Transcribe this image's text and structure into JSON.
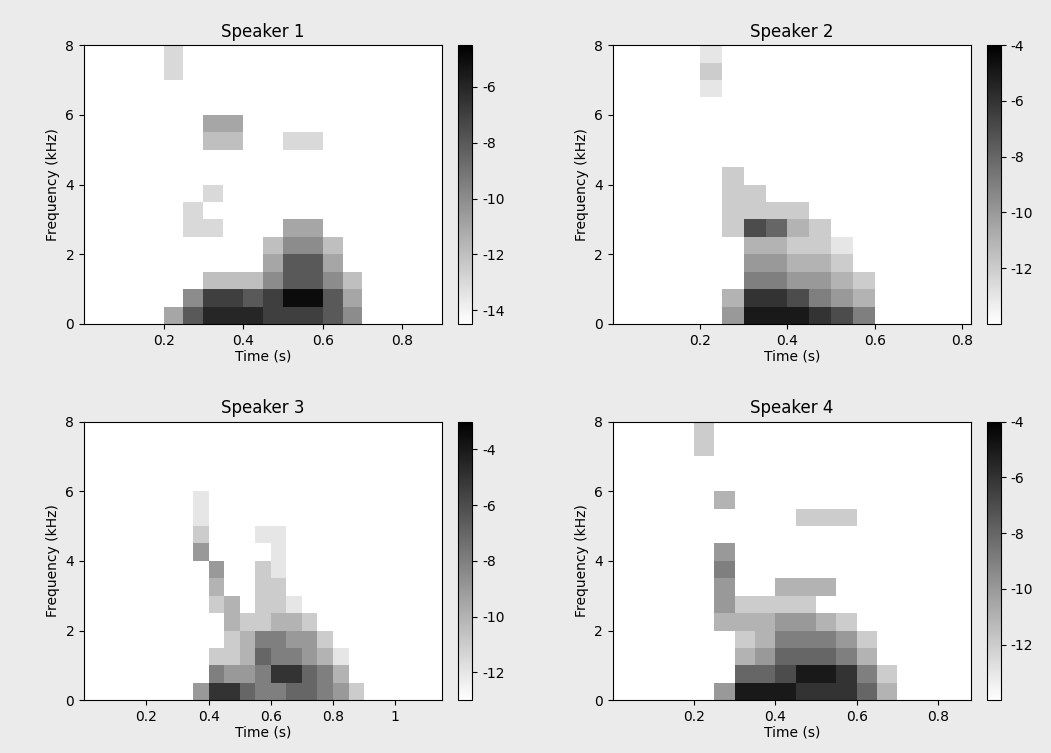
{
  "chart_data": [
    {
      "type": "heatmap",
      "title": "Speaker 1",
      "x_label": "Time (s)",
      "y_label": "Frequency (kHz)",
      "xlim": [
        0,
        0.9
      ],
      "xticks": [
        0.2,
        0.4,
        0.6,
        0.8
      ],
      "ylim": [
        0,
        8
      ],
      "yticks": [
        0,
        2,
        4,
        6,
        8
      ],
      "time_edges": [
        0.15,
        0.2,
        0.25,
        0.3,
        0.35,
        0.4,
        0.45,
        0.5,
        0.55,
        0.6,
        0.65,
        0.7,
        0.75
      ],
      "freq_edges": [
        0,
        0.5,
        1,
        1.5,
        2,
        2.5,
        3,
        3.5,
        4,
        4.5,
        5,
        5.5,
        6,
        6.5,
        7,
        7.5,
        8
      ],
      "colorbar_range": [
        -14.5,
        -4.5
      ],
      "colorbar_ticks": [
        -14,
        -12,
        -10,
        -8,
        -6
      ],
      "cells": [
        [
          null,
          -11,
          -8,
          -6,
          -6,
          -6,
          -7,
          -7,
          -7,
          -8,
          -10,
          null
        ],
        [
          null,
          null,
          -10,
          -7,
          -7,
          -8,
          -7,
          -5,
          -5,
          -8,
          -11,
          null
        ],
        [
          null,
          null,
          null,
          -12,
          -12,
          -12,
          -10,
          -8,
          -8,
          -10,
          -12,
          null
        ],
        [
          null,
          null,
          null,
          null,
          null,
          null,
          -11,
          -8,
          -8,
          -11,
          null,
          null
        ],
        [
          null,
          null,
          null,
          null,
          null,
          null,
          -12,
          -10,
          -10,
          -12,
          null,
          null
        ],
        [
          null,
          null,
          -13,
          -13,
          null,
          null,
          null,
          -11,
          -11,
          null,
          null,
          null
        ],
        [
          null,
          null,
          -13,
          null,
          null,
          null,
          null,
          null,
          null,
          null,
          null,
          null
        ],
        [
          null,
          null,
          null,
          -13,
          null,
          null,
          null,
          null,
          null,
          null,
          null,
          null
        ],
        [
          null,
          null,
          null,
          null,
          null,
          null,
          null,
          null,
          null,
          null,
          null,
          null
        ],
        [
          null,
          null,
          null,
          null,
          null,
          null,
          null,
          null,
          null,
          null,
          null,
          null
        ],
        [
          null,
          null,
          null,
          -12,
          -12,
          null,
          null,
          -13,
          -13,
          null,
          null,
          null
        ],
        [
          null,
          null,
          null,
          -11,
          -11,
          null,
          null,
          null,
          null,
          null,
          null,
          null
        ],
        [
          null,
          null,
          null,
          null,
          null,
          null,
          null,
          null,
          null,
          null,
          null,
          null
        ],
        [
          null,
          null,
          null,
          null,
          null,
          null,
          null,
          null,
          null,
          null,
          null,
          null
        ],
        [
          null,
          -13,
          null,
          null,
          null,
          null,
          null,
          null,
          null,
          null,
          null,
          null
        ],
        [
          null,
          -13,
          null,
          null,
          null,
          null,
          null,
          null,
          null,
          null,
          null,
          null
        ]
      ]
    },
    {
      "type": "heatmap",
      "title": "Speaker 2",
      "x_label": "Time (s)",
      "y_label": "Frequency (kHz)",
      "xlim": [
        0,
        0.82
      ],
      "xticks": [
        0.2,
        0.4,
        0.6,
        0.8
      ],
      "ylim": [
        0,
        8
      ],
      "yticks": [
        0,
        2,
        4,
        6,
        8
      ],
      "time_edges": [
        0.15,
        0.2,
        0.25,
        0.3,
        0.35,
        0.4,
        0.45,
        0.5,
        0.55,
        0.6,
        0.65
      ],
      "freq_edges": [
        0,
        0.5,
        1,
        1.5,
        2,
        2.5,
        3,
        3.5,
        4,
        4.5,
        5,
        5.5,
        6,
        6.5,
        7,
        7.5,
        8
      ],
      "colorbar_range": [
        -14,
        -4
      ],
      "colorbar_ticks": [
        -12,
        -10,
        -8,
        -6,
        -4
      ],
      "cells": [
        [
          null,
          null,
          -10,
          -5,
          -5,
          -5,
          -6,
          -7,
          -9,
          null
        ],
        [
          null,
          null,
          -11,
          -6,
          -6,
          -7,
          -9,
          -10,
          -11,
          null
        ],
        [
          null,
          null,
          null,
          -9,
          -9,
          -10,
          -10,
          -11,
          -12,
          null
        ],
        [
          null,
          null,
          null,
          -10,
          -10,
          -11,
          -11,
          -12,
          null,
          null
        ],
        [
          null,
          null,
          null,
          -11,
          -11,
          -12,
          -12,
          -13,
          null,
          null
        ],
        [
          null,
          null,
          -12,
          -7,
          -8,
          -11,
          -12,
          null,
          null,
          null
        ],
        [
          null,
          null,
          -12,
          -12,
          -12,
          -12,
          null,
          null,
          null,
          null
        ],
        [
          null,
          null,
          -12,
          -12,
          null,
          null,
          null,
          null,
          null,
          null
        ],
        [
          null,
          null,
          -12,
          null,
          null,
          null,
          null,
          null,
          null,
          null
        ],
        [
          null,
          null,
          null,
          null,
          null,
          null,
          null,
          null,
          null,
          null
        ],
        [
          null,
          null,
          null,
          null,
          null,
          null,
          null,
          null,
          null,
          null
        ],
        [
          null,
          null,
          null,
          null,
          null,
          null,
          null,
          null,
          null,
          null
        ],
        [
          null,
          null,
          null,
          null,
          null,
          null,
          null,
          null,
          null,
          null
        ],
        [
          null,
          -13,
          null,
          null,
          null,
          null,
          null,
          null,
          null,
          null
        ],
        [
          null,
          -12,
          null,
          null,
          null,
          null,
          null,
          null,
          null,
          null
        ],
        [
          null,
          -13,
          null,
          null,
          null,
          null,
          null,
          null,
          null,
          null
        ]
      ]
    },
    {
      "type": "heatmap",
      "title": "Speaker 3",
      "x_label": "Time (s)",
      "y_label": "Frequency (kHz)",
      "xlim": [
        0,
        1.15
      ],
      "xticks": [
        0.2,
        0.4,
        0.6,
        0.8,
        1
      ],
      "ylim": [
        0,
        8
      ],
      "yticks": [
        0,
        2,
        4,
        6,
        8
      ],
      "time_edges": [
        0.3,
        0.35,
        0.4,
        0.45,
        0.5,
        0.55,
        0.6,
        0.65,
        0.7,
        0.75,
        0.8,
        0.85,
        0.9
      ],
      "freq_edges": [
        0,
        0.5,
        1,
        1.5,
        2,
        2.5,
        3,
        3.5,
        4,
        4.5,
        5,
        5.5,
        6,
        6.5,
        7,
        7.5,
        8
      ],
      "colorbar_range": [
        -13,
        -3
      ],
      "colorbar_ticks": [
        -12,
        -10,
        -8,
        -6,
        -4
      ],
      "cells": [
        [
          null,
          -9,
          -5,
          -5,
          -7,
          -8,
          -8,
          -7,
          -7,
          -8,
          -9,
          -11
        ],
        [
          null,
          null,
          -8,
          -9,
          -9,
          -8,
          -5,
          -5,
          -7,
          -8,
          -10,
          null
        ],
        [
          null,
          null,
          -11,
          -11,
          -10,
          -7,
          -8,
          -8,
          -9,
          -10,
          -12,
          null
        ],
        [
          null,
          null,
          null,
          -11,
          -10,
          -8,
          -8,
          -9,
          -9,
          -11,
          null,
          null
        ],
        [
          null,
          null,
          null,
          -10,
          -11,
          -11,
          -10,
          -10,
          -11,
          null,
          null,
          null
        ],
        [
          null,
          null,
          -11,
          -10,
          null,
          -11,
          -11,
          -12,
          null,
          null,
          null,
          null
        ],
        [
          null,
          null,
          -10,
          null,
          null,
          -11,
          -11,
          null,
          null,
          null,
          null,
          null
        ],
        [
          null,
          null,
          -9,
          null,
          null,
          -11,
          -12,
          null,
          null,
          null,
          null,
          null
        ],
        [
          null,
          -9,
          null,
          null,
          null,
          null,
          -12,
          null,
          null,
          null,
          null,
          null
        ],
        [
          null,
          -11,
          null,
          null,
          null,
          -12,
          -12,
          null,
          null,
          null,
          null,
          null
        ],
        [
          null,
          -12,
          null,
          null,
          null,
          null,
          null,
          null,
          null,
          null,
          null,
          null
        ],
        [
          null,
          -12,
          null,
          null,
          null,
          null,
          null,
          null,
          null,
          null,
          null,
          null
        ],
        [
          null,
          null,
          null,
          null,
          null,
          null,
          null,
          null,
          null,
          null,
          null,
          null
        ],
        [
          null,
          null,
          null,
          null,
          null,
          null,
          null,
          null,
          null,
          null,
          null,
          null
        ],
        [
          null,
          null,
          null,
          null,
          null,
          null,
          null,
          null,
          null,
          null,
          null,
          null
        ],
        [
          null,
          null,
          null,
          null,
          null,
          null,
          null,
          null,
          null,
          null,
          null,
          null
        ]
      ]
    },
    {
      "type": "heatmap",
      "title": "Speaker 4",
      "x_label": "Time (s)",
      "y_label": "Frequency (kHz)",
      "xlim": [
        0,
        0.88
      ],
      "xticks": [
        0.2,
        0.4,
        0.6,
        0.8
      ],
      "ylim": [
        0,
        8
      ],
      "yticks": [
        0,
        2,
        4,
        6,
        8
      ],
      "time_edges": [
        0.15,
        0.2,
        0.25,
        0.3,
        0.35,
        0.4,
        0.45,
        0.5,
        0.55,
        0.6,
        0.65,
        0.7
      ],
      "freq_edges": [
        0,
        0.5,
        1,
        1.5,
        2,
        2.5,
        3,
        3.5,
        4,
        4.5,
        5,
        5.5,
        6,
        6.5,
        7,
        7.5,
        8
      ],
      "colorbar_range": [
        -14,
        -4
      ],
      "colorbar_ticks": [
        -12,
        -10,
        -8,
        -6,
        -4
      ],
      "cells": [
        [
          null,
          null,
          -10,
          -5,
          -5,
          -5,
          -6,
          -6,
          -6,
          -8,
          -11
        ],
        [
          null,
          null,
          null,
          -8,
          -8,
          -7,
          -5,
          -5,
          -6,
          -9,
          -12
        ],
        [
          null,
          null,
          null,
          -11,
          -10,
          -8,
          -8,
          -8,
          -9,
          -11,
          null
        ],
        [
          null,
          null,
          null,
          -12,
          -11,
          -9,
          -9,
          -9,
          -10,
          -12,
          null
        ],
        [
          null,
          null,
          -11,
          -11,
          -11,
          -10,
          -10,
          -11,
          -12,
          null,
          null
        ],
        [
          null,
          null,
          -10,
          -12,
          -12,
          -12,
          -12,
          null,
          null,
          null,
          null
        ],
        [
          null,
          null,
          -10,
          null,
          null,
          -11,
          -11,
          -11,
          null,
          null,
          null
        ],
        [
          null,
          null,
          -9,
          null,
          null,
          null,
          null,
          null,
          null,
          null,
          null
        ],
        [
          null,
          null,
          -10,
          null,
          null,
          null,
          null,
          null,
          null,
          null,
          null
        ],
        [
          null,
          null,
          null,
          null,
          null,
          null,
          null,
          null,
          null,
          null,
          null
        ],
        [
          null,
          null,
          null,
          null,
          null,
          null,
          -12,
          -12,
          -12,
          null,
          null
        ],
        [
          null,
          null,
          -11,
          null,
          null,
          null,
          null,
          null,
          null,
          null,
          null
        ],
        [
          null,
          null,
          null,
          null,
          null,
          null,
          null,
          null,
          null,
          null,
          null
        ],
        [
          null,
          null,
          null,
          null,
          null,
          null,
          null,
          null,
          null,
          null,
          null
        ],
        [
          null,
          -12,
          null,
          null,
          null,
          null,
          null,
          null,
          null,
          null,
          null
        ],
        [
          null,
          -12,
          null,
          null,
          null,
          null,
          null,
          null,
          null,
          null,
          null
        ]
      ]
    }
  ]
}
